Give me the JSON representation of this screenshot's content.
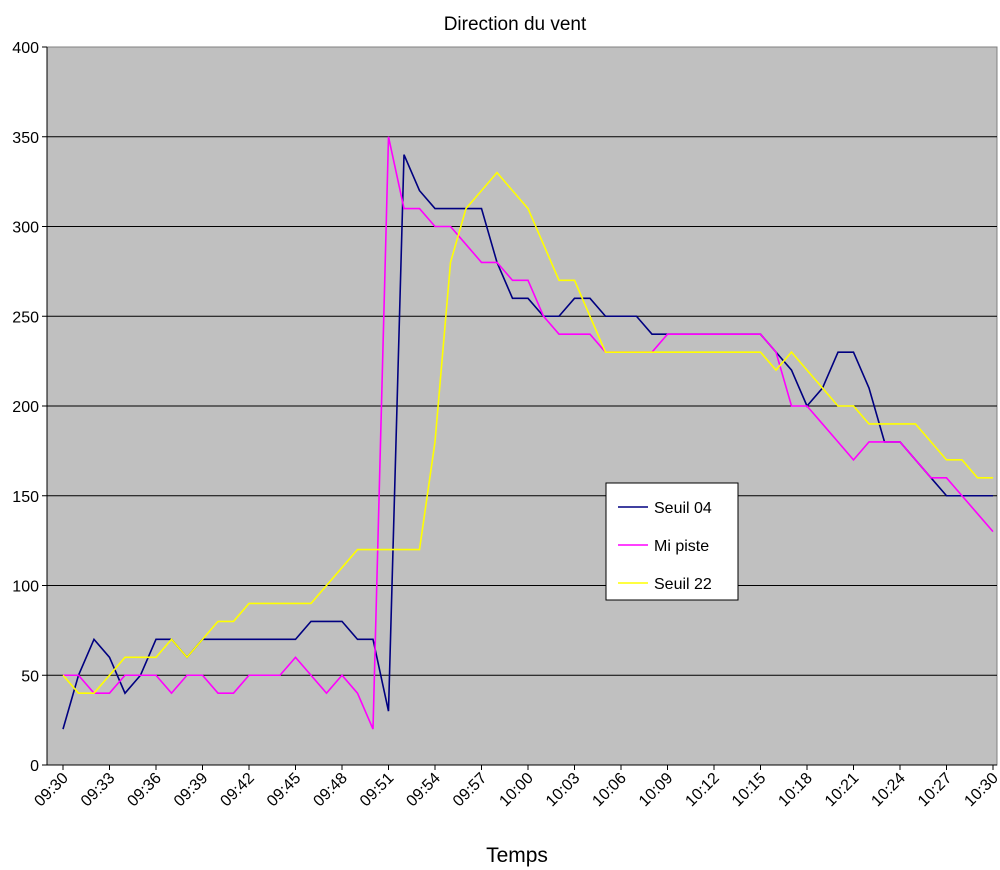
{
  "chart_data": {
    "type": "line",
    "title": "Direction du vent",
    "x_label": "Temps",
    "categories": [
      "09:30",
      null,
      null,
      "09:33",
      null,
      null,
      "09:36",
      null,
      null,
      "09:39",
      null,
      null,
      "09:42",
      null,
      null,
      "09:45",
      null,
      null,
      "09:48",
      null,
      null,
      "09:51",
      null,
      null,
      "09:54",
      null,
      null,
      "09:57",
      null,
      null,
      "10:00",
      null,
      null,
      "10:03",
      null,
      null,
      "10:06",
      null,
      null,
      "10:09",
      null,
      null,
      "10:12",
      null,
      null,
      "10:15",
      null,
      null,
      "10:18",
      null,
      null,
      "10:21",
      null,
      null,
      "10:24",
      null,
      null,
      "10:27",
      null,
      null,
      "10:30"
    ],
    "series": [
      {
        "name": "Seuil 04",
        "color": "#000080",
        "values": [
          20,
          50,
          70,
          60,
          40,
          50,
          70,
          70,
          60,
          70,
          70,
          70,
          70,
          70,
          70,
          70,
          80,
          80,
          80,
          70,
          70,
          30,
          340,
          320,
          310,
          310,
          310,
          310,
          280,
          260,
          260,
          250,
          250,
          260,
          260,
          250,
          250,
          250,
          240,
          240,
          240,
          240,
          240,
          240,
          240,
          240,
          230,
          220,
          200,
          210,
          230,
          230,
          210,
          180,
          180,
          170,
          160,
          150,
          150,
          150,
          150
        ]
      },
      {
        "name": "Mi piste",
        "color": "#ff00ff",
        "values": [
          50,
          50,
          40,
          40,
          50,
          50,
          50,
          40,
          50,
          50,
          40,
          40,
          50,
          50,
          50,
          60,
          50,
          40,
          50,
          40,
          20,
          350,
          310,
          310,
          300,
          300,
          290,
          280,
          280,
          270,
          270,
          250,
          240,
          240,
          240,
          230,
          230,
          230,
          230,
          240,
          240,
          240,
          240,
          240,
          240,
          240,
          230,
          200,
          200,
          190,
          180,
          170,
          180,
          180,
          180,
          170,
          160,
          160,
          150,
          140,
          130
        ]
      },
      {
        "name": "Seuil 22",
        "color": "#ffff00",
        "values": [
          50,
          40,
          40,
          50,
          60,
          60,
          60,
          70,
          60,
          70,
          80,
          80,
          90,
          90,
          90,
          90,
          90,
          100,
          110,
          120,
          120,
          120,
          120,
          120,
          180,
          280,
          310,
          320,
          330,
          320,
          310,
          290,
          270,
          270,
          250,
          230,
          230,
          230,
          230,
          230,
          230,
          230,
          230,
          230,
          230,
          230,
          220,
          230,
          220,
          210,
          200,
          200,
          190,
          190,
          190,
          190,
          180,
          170,
          170,
          160,
          160
        ]
      }
    ],
    "ylim": [
      0,
      400
    ],
    "yticks": [
      0,
      50,
      100,
      150,
      200,
      250,
      300,
      350,
      400
    ],
    "grid": true,
    "plot_background": "#c0c0c0"
  }
}
